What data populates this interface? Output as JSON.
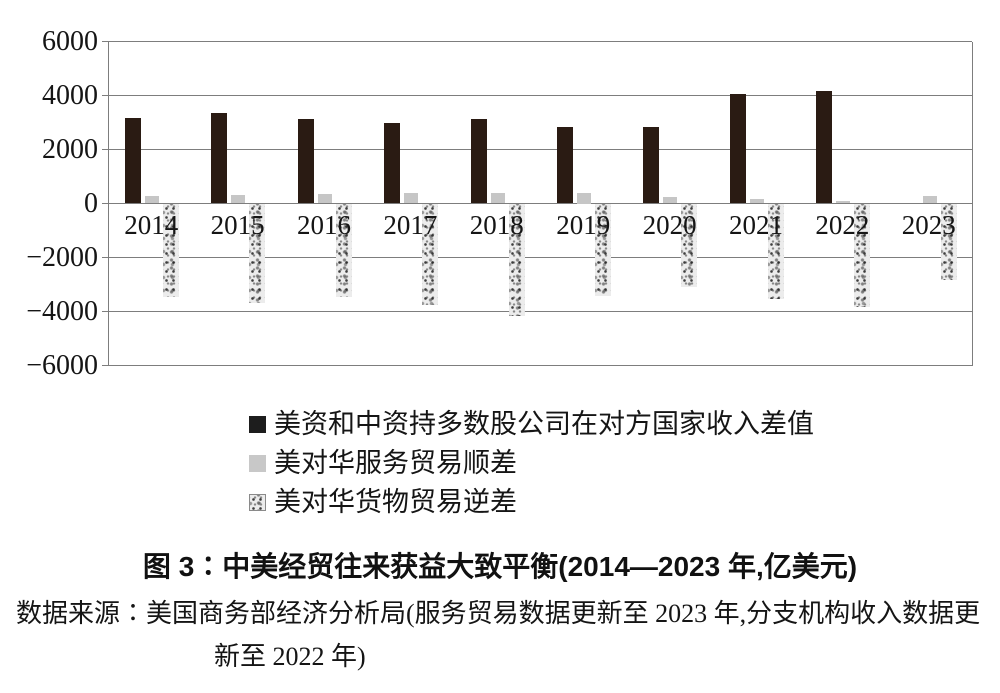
{
  "figure": {
    "title": "图 3∶中美经贸往来获益大致平衡(2014—2023 年,亿美元)",
    "source_line1": "数据来源∶美国商务部经济分析局(服务贸易数据更新至 2023 年,分支机构收入数据更",
    "source_line2": "新至 2022 年)"
  },
  "chart_data": {
    "type": "bar",
    "title": "图 3∶中美经贸往来获益大致平衡(2014—2023 年,亿美元)",
    "xlabel": "",
    "ylabel": "亿美元",
    "categories": [
      "2014",
      "2015",
      "2016",
      "2017",
      "2018",
      "2019",
      "2020",
      "2021",
      "2022",
      "2023"
    ],
    "series": [
      {
        "name": "美资和中资持多数股公司在对方国家收入差值",
        "style": "solid-black",
        "color": "#2a1b13",
        "values": [
          3180,
          3340,
          3130,
          2970,
          3120,
          2820,
          2850,
          4060,
          4160,
          null
        ]
      },
      {
        "name": "美对华服务贸易顺差",
        "style": "solid-lightgray",
        "color": "#c6c6c6",
        "values": [
          270,
          300,
          370,
          380,
          395,
          375,
          240,
          150,
          110,
          260
        ]
      },
      {
        "name": "美对华货物贸易逆差",
        "style": "speckled",
        "color": "#ececec",
        "values": [
          -3450,
          -3700,
          -3460,
          -3760,
          -4180,
          -3430,
          -3100,
          -3540,
          -3820,
          -2830
        ]
      }
    ],
    "ylim": [
      -6000,
      6000
    ],
    "ytick_interval": 2000,
    "yticks": [
      "6000",
      "4000",
      "2000",
      "0",
      "−2000",
      "−4000",
      "−6000"
    ],
    "grid": "horizontal-only",
    "legend_position": "below-chart",
    "gridline_color": "#7d7d7d"
  }
}
